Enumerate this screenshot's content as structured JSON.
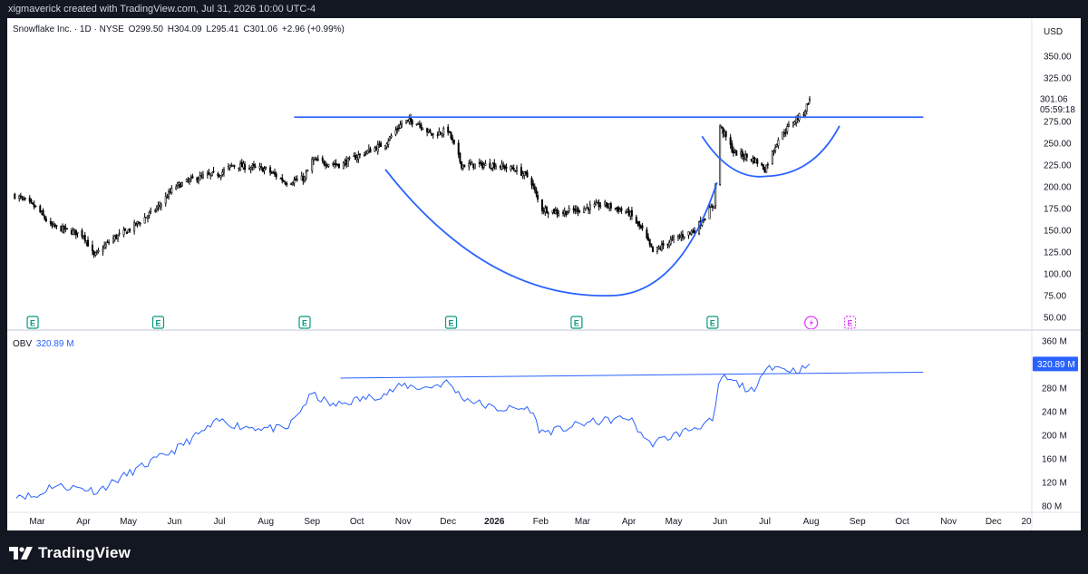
{
  "header": {
    "attribution": "xigmaverick created with TradingView.com, Jul 31, 2026 10:00 UTC-4"
  },
  "legend": {
    "symbol": "Snowflake Inc. · 1D · NYSE",
    "open_label": "O",
    "open": "299.50",
    "high_label": "H",
    "high": "304.09",
    "low_label": "L",
    "low": "295.41",
    "close_label": "C",
    "close": "301.06",
    "change": "+2.96 (+0.99%)"
  },
  "obv_legend": {
    "name": "OBV",
    "value": "320.89 M"
  },
  "price_axis": {
    "currency": "USD",
    "ticks": [
      "350.00",
      "325.00",
      "301.06",
      "275.00",
      "250.00",
      "225.00",
      "200.00",
      "175.00",
      "150.00",
      "125.00",
      "100.00",
      "75.00",
      "50.00"
    ],
    "last_price_label": "301.06",
    "countdown_label": "05:59:18"
  },
  "obv_axis": {
    "ticks": [
      "360 M",
      "280 M",
      "240 M",
      "200 M",
      "160 M",
      "120 M",
      "80 M"
    ],
    "last_value_label": "320.89 M"
  },
  "time_axis": {
    "labels": [
      "Mar",
      "Apr",
      "May",
      "Jun",
      "Jul",
      "Aug",
      "Sep",
      "Oct",
      "Nov",
      "Dec",
      "2026",
      "Feb",
      "Mar",
      "Apr",
      "May",
      "Jun",
      "Jul",
      "Aug",
      "Sep",
      "Oct",
      "Nov",
      "Dec",
      "20"
    ]
  },
  "earnings_marker_label": "E",
  "footer": {
    "brand": "TradingView"
  },
  "colors": {
    "background": "#131722",
    "panel": "#ffffff",
    "candle": "#000000",
    "drawing": "#2962ff",
    "obv_line": "#2962ff",
    "earnings": "#089981",
    "upcoming_earnings": "#e040fb",
    "last_price_tag": "#2962ff"
  },
  "chart_data": [
    {
      "type": "candlestick",
      "title": "Snowflake Inc. · 1D · NYSE",
      "ylabel": "USD",
      "ylim": [
        50,
        350
      ],
      "date_range": [
        "2025-02-14",
        "2026-07-31"
      ],
      "last": {
        "open": 299.5,
        "high": 304.09,
        "low": 295.41,
        "close": 301.06
      },
      "approx_closes": [
        [
          "2025-02-15",
          190
        ],
        [
          "2025-03-01",
          175
        ],
        [
          "2025-03-10",
          155
        ],
        [
          "2025-04-01",
          145
        ],
        [
          "2025-04-08",
          120
        ],
        [
          "2025-04-20",
          140
        ],
        [
          "2025-05-01",
          150
        ],
        [
          "2025-05-20",
          175
        ],
        [
          "2025-06-01",
          200
        ],
        [
          "2025-06-15",
          210
        ],
        [
          "2025-07-01",
          215
        ],
        [
          "2025-07-10",
          225
        ],
        [
          "2025-08-01",
          220
        ],
        [
          "2025-08-15",
          205
        ],
        [
          "2025-08-27",
          210
        ],
        [
          "2025-09-01",
          230
        ],
        [
          "2025-09-20",
          225
        ],
        [
          "2025-10-01",
          235
        ],
        [
          "2025-10-20",
          250
        ],
        [
          "2025-11-01",
          275
        ],
        [
          "2025-11-10",
          275
        ],
        [
          "2025-11-20",
          260
        ],
        [
          "2025-12-01",
          265
        ],
        [
          "2025-12-10",
          225
        ],
        [
          "2026-01-01",
          225
        ],
        [
          "2026-01-15",
          220
        ],
        [
          "2026-01-25",
          210
        ],
        [
          "2026-02-01",
          175
        ],
        [
          "2026-02-15",
          170
        ],
        [
          "2026-03-01",
          175
        ],
        [
          "2026-03-15",
          180
        ],
        [
          "2026-04-01",
          170
        ],
        [
          "2026-04-10",
          150
        ],
        [
          "2026-04-17",
          125
        ],
        [
          "2026-05-01",
          140
        ],
        [
          "2026-05-15",
          150
        ],
        [
          "2026-05-28",
          180
        ],
        [
          "2026-06-01",
          270
        ],
        [
          "2026-06-10",
          240
        ],
        [
          "2026-06-25",
          230
        ],
        [
          "2026-07-01",
          220
        ],
        [
          "2026-07-10",
          255
        ],
        [
          "2026-07-20",
          275
        ],
        [
          "2026-07-27",
          285
        ],
        [
          "2026-07-31",
          301.06
        ]
      ],
      "annotations": [
        {
          "kind": "horizontal-resistance",
          "price": 280,
          "from": "2025-08-20",
          "to": "2026-10-15"
        },
        {
          "kind": "cup-curve",
          "from": "2025-10-20",
          "bottom": "2026-03-20",
          "to": "2026-05-30",
          "bottom_price": 75
        },
        {
          "kind": "handle-curve",
          "from": "2026-05-20",
          "bottom": "2026-07-01",
          "to": "2026-08-20",
          "bottom_price": 212
        }
      ],
      "earnings_dates": [
        "2025-02-26",
        "2025-05-21",
        "2025-08-27",
        "2025-12-03",
        "2026-02-25",
        "2026-05-27"
      ],
      "upcoming_events": [
        "2026-08-01",
        "2026-08-27"
      ]
    },
    {
      "type": "line",
      "title": "OBV",
      "ylim": [
        80,
        360
      ],
      "last_value": 320.89,
      "series": [
        {
          "name": "OBV",
          "x": [
            "2025-02-15",
            "2025-03-01",
            "2025-03-10",
            "2025-04-01",
            "2025-04-10",
            "2025-05-01",
            "2025-06-01",
            "2025-07-01",
            "2025-07-15",
            "2025-08-15",
            "2025-09-01",
            "2025-09-15",
            "2025-10-01",
            "2025-10-20",
            "2025-11-01",
            "2025-11-15",
            "2025-12-01",
            "2025-12-10",
            "2026-01-01",
            "2026-01-25",
            "2026-02-01",
            "2026-02-15",
            "2026-03-01",
            "2026-04-01",
            "2026-04-15",
            "2026-05-01",
            "2026-05-28",
            "2026-06-01",
            "2026-06-15",
            "2026-06-25",
            "2026-07-01",
            "2026-07-10",
            "2026-07-20",
            "2026-07-27",
            "2026-07-31"
          ],
          "values": [
            100,
            95,
            115,
            110,
            105,
            135,
            175,
            225,
            215,
            210,
            270,
            250,
            260,
            270,
            285,
            280,
            290,
            265,
            245,
            245,
            205,
            210,
            220,
            230,
            185,
            200,
            225,
            300,
            285,
            270,
            320,
            315,
            310,
            313,
            320.89
          ]
        }
      ],
      "annotations": [
        {
          "kind": "trend-line",
          "from": [
            "2025-09-20",
            297
          ],
          "to": [
            "2026-10-15",
            307
          ]
        }
      ]
    }
  ]
}
